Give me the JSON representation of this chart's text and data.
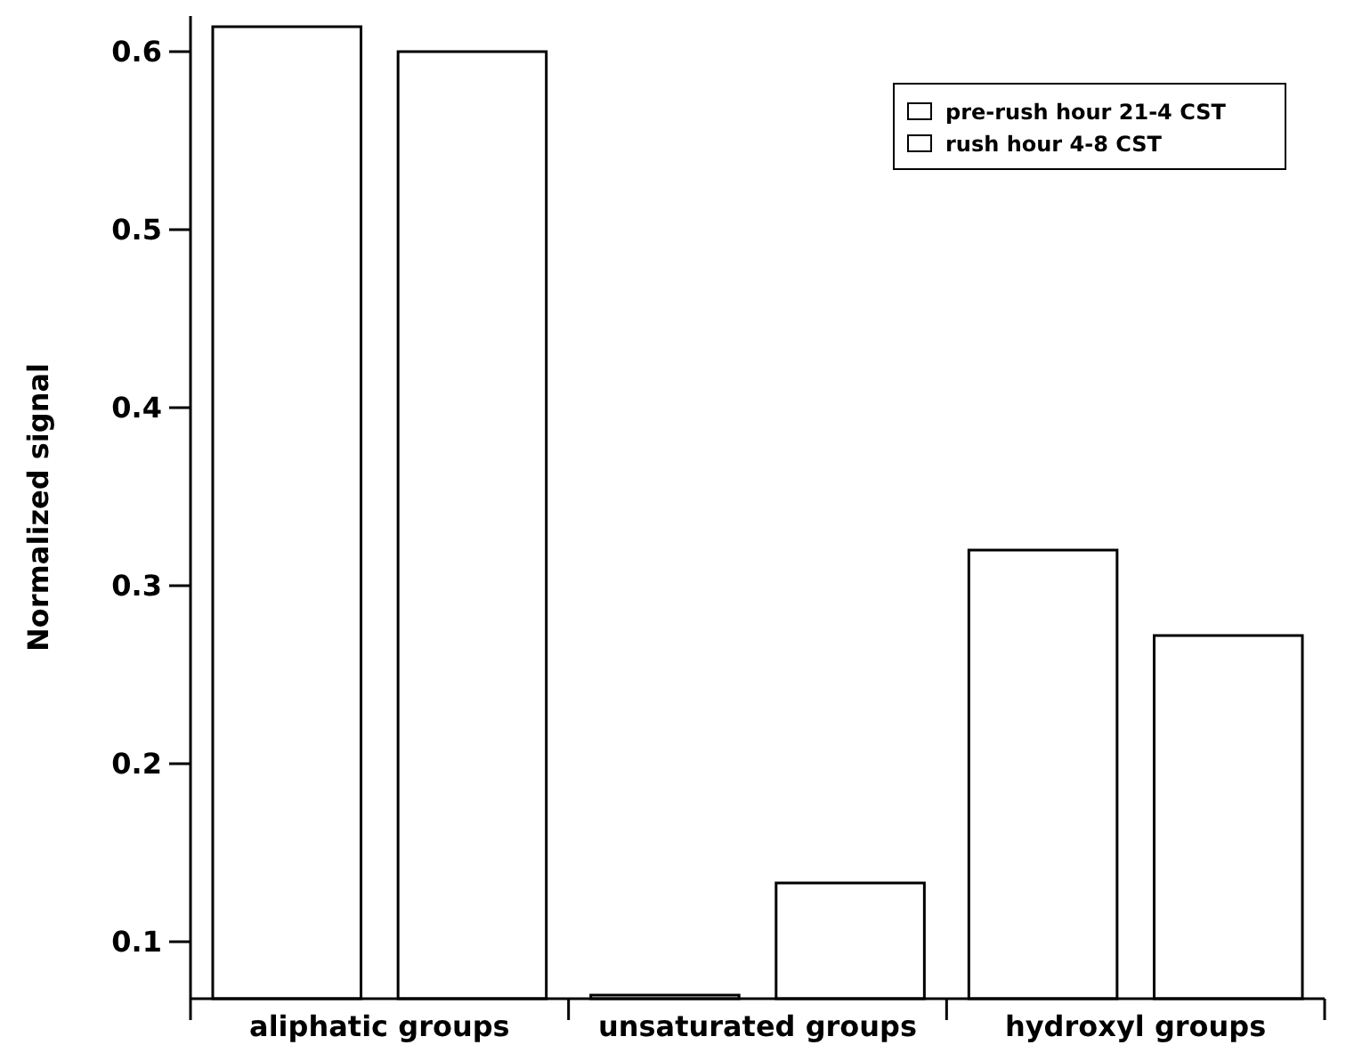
{
  "chart_data": {
    "type": "bar",
    "ylabel": "Normalized signal",
    "categories": [
      "aliphatic groups",
      "unsaturated groups",
      "hydroxyl groups"
    ],
    "series": [
      {
        "name": "pre-rush hour 21-4 CST",
        "color": "#ffffff",
        "values": [
          0.614,
          0.07,
          0.32
        ]
      },
      {
        "name": "rush hour 4-8 CST",
        "color": "#ffffff",
        "values": [
          0.6,
          0.133,
          0.272
        ]
      }
    ],
    "ylim": [
      0.068,
      0.62
    ],
    "yticks": [
      0.1,
      0.2,
      0.3,
      0.4,
      0.5,
      0.6
    ],
    "grid": false,
    "legend": "top right"
  }
}
